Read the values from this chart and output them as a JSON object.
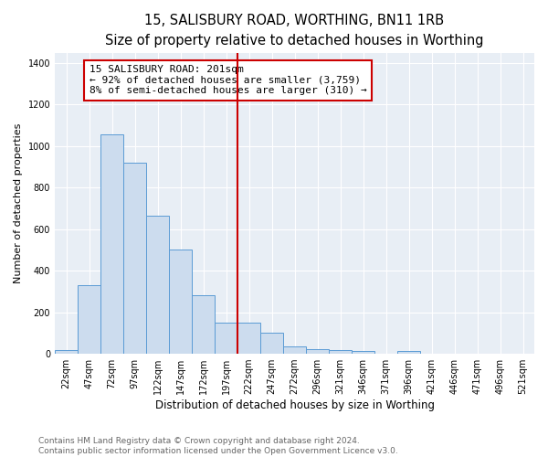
{
  "title": "15, SALISBURY ROAD, WORTHING, BN11 1RB",
  "subtitle": "Size of property relative to detached houses in Worthing",
  "xlabel": "Distribution of detached houses by size in Worthing",
  "ylabel": "Number of detached properties",
  "bar_labels": [
    "22sqm",
    "47sqm",
    "72sqm",
    "97sqm",
    "122sqm",
    "147sqm",
    "172sqm",
    "197sqm",
    "222sqm",
    "247sqm",
    "272sqm",
    "296sqm",
    "321sqm",
    "346sqm",
    "371sqm",
    "396sqm",
    "421sqm",
    "446sqm",
    "471sqm",
    "496sqm",
    "521sqm"
  ],
  "bar_values": [
    20,
    330,
    1055,
    920,
    665,
    500,
    280,
    150,
    150,
    100,
    35,
    22,
    20,
    15,
    0,
    12,
    0,
    0,
    0,
    0,
    0
  ],
  "bar_color": "#ccdcee",
  "bar_edge_color": "#5b9bd5",
  "vline_x_index": 7,
  "vline_color": "#cc0000",
  "annotation_text": "15 SALISBURY ROAD: 201sqm\n← 92% of detached houses are smaller (3,759)\n8% of semi-detached houses are larger (310) →",
  "annotation_box_color": "white",
  "annotation_box_edge": "#cc0000",
  "ylim": [
    0,
    1450
  ],
  "yticks": [
    0,
    200,
    400,
    600,
    800,
    1000,
    1200,
    1400
  ],
  "bg_color": "#e8eef5",
  "footer_text": "Contains HM Land Registry data © Crown copyright and database right 2024.\nContains public sector information licensed under the Open Government Licence v3.0.",
  "title_fontsize": 10.5,
  "subtitle_fontsize": 9.5,
  "xlabel_fontsize": 8.5,
  "ylabel_fontsize": 8,
  "tick_fontsize": 7,
  "annotation_fontsize": 8,
  "footer_fontsize": 6.5
}
